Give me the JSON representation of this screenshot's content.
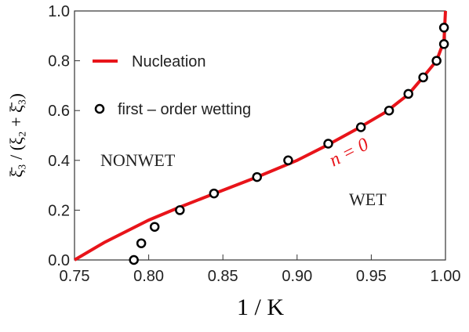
{
  "chart_data": {
    "type": "line",
    "xlabel": "1 / K",
    "ylabel": "ξ̄₃ / (ξ₂ + ξ̄₃)",
    "annotations": [
      "NONWET",
      "WET",
      "n = 0"
    ],
    "xlim": [
      0.75,
      1.0
    ],
    "ylim": [
      0.0,
      1.0
    ],
    "xticks": [
      0.75,
      {
        "value": 0.8,
        "label": "0.80"
      },
      0.85,
      {
        "value": 0.9,
        "label": "0.90"
      },
      0.95,
      {
        "value": 1.0,
        "label": "1.00"
      }
    ],
    "yticks": [
      {
        "value": 0.0,
        "label": "0.0"
      },
      0.2,
      0.4,
      0.6,
      0.8,
      {
        "value": 1.0,
        "label": "1.0"
      }
    ],
    "series": [
      {
        "name": "Nucleation",
        "color": "#e8141a",
        "style": "line",
        "x": [
          0.75,
          0.77,
          0.8,
          0.82,
          0.85,
          0.873,
          0.9,
          0.92,
          0.94,
          0.96,
          0.975,
          0.985,
          0.994,
          0.999,
          1.0
        ],
        "values": [
          0.0,
          0.07,
          0.16,
          0.21,
          0.28,
          0.333,
          0.4,
          0.46,
          0.525,
          0.595,
          0.665,
          0.735,
          0.8,
          0.88,
          1.0
        ]
      },
      {
        "name": "first – order wetting",
        "color": "#000000",
        "style": "markers",
        "x": [
          0.79,
          0.795,
          0.804,
          0.821,
          0.844,
          0.873,
          0.894,
          0.921,
          0.943,
          0.962,
          0.975,
          0.985,
          0.994,
          0.999,
          0.999
        ],
        "values": [
          0.0,
          0.067,
          0.133,
          0.2,
          0.267,
          0.333,
          0.4,
          0.467,
          0.533,
          0.6,
          0.667,
          0.733,
          0.8,
          0.867,
          0.933
        ]
      }
    ]
  }
}
